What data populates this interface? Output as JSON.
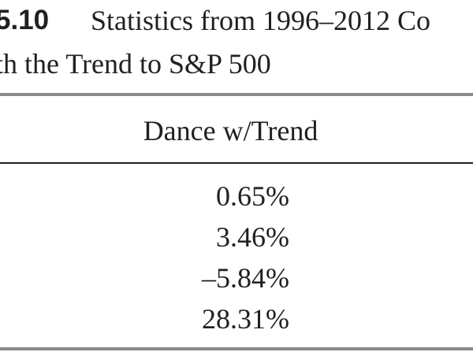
{
  "header": {
    "number": "5.10",
    "title_line1": "Statistics from 1996–2012 Co",
    "title_line2": "th the Trend to S&P 500"
  },
  "table": {
    "columns": [
      "Dance w/Trend"
    ],
    "rows": [
      [
        "0.65%"
      ],
      [
        "3.46%"
      ],
      [
        "–5.84%"
      ],
      [
        "28.31%"
      ]
    ]
  }
}
